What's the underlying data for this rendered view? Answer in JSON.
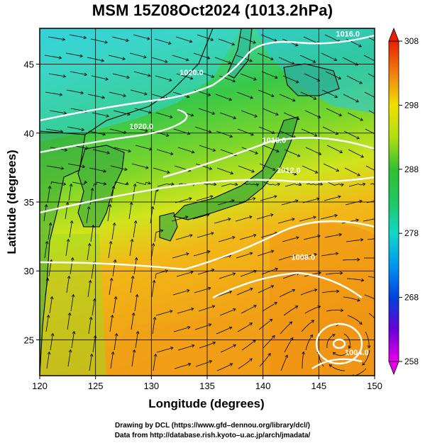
{
  "title": "MSM 15Z08Oct2024 (1013.2hPa)",
  "axes": {
    "xlabel": "Longitude (degrees)",
    "ylabel": "Latitude  (degrees)",
    "xticks": [
      120,
      125,
      130,
      135,
      140,
      145,
      150
    ],
    "yticks": [
      25,
      30,
      35,
      40,
      45
    ],
    "xlim": [
      120,
      150
    ],
    "ylim": [
      22.4,
      47.6
    ]
  },
  "colorbar": {
    "ticks": [
      258,
      268,
      278,
      288,
      298,
      308
    ],
    "range": [
      258,
      308
    ]
  },
  "contours": [
    {
      "label": "1016.0",
      "lon": 141.0,
      "lat": 39.3
    },
    {
      "label": "1016.0",
      "lon": 147.6,
      "lat": 47.0
    },
    {
      "label": "1020.0",
      "lon": 129.1,
      "lat": 40.3
    },
    {
      "label": "1020.0",
      "lon": 133.6,
      "lat": 44.2
    },
    {
      "label": "1012.0",
      "lon": 142.3,
      "lat": 37.1
    },
    {
      "label": "1008.0",
      "lon": 143.6,
      "lat": 30.8
    },
    {
      "label": "1004.0",
      "lon": 148.4,
      "lat": 23.9
    }
  ],
  "credits": {
    "line1": "Drawing by DCL (https://www.gfd–dennou.org/library/dcl/)",
    "line2": "Data from http://database.rish.kyoto–u.ac.jp/arch/jmadata/"
  },
  "colors": {
    "cold": "#2fbfe6",
    "cool": "#4fd8a8",
    "mid": "#3ecb4a",
    "warm": "#b8e21a",
    "hot": "#f5a418",
    "land": "#3aa636",
    "isobar": "#ffffff"
  }
}
